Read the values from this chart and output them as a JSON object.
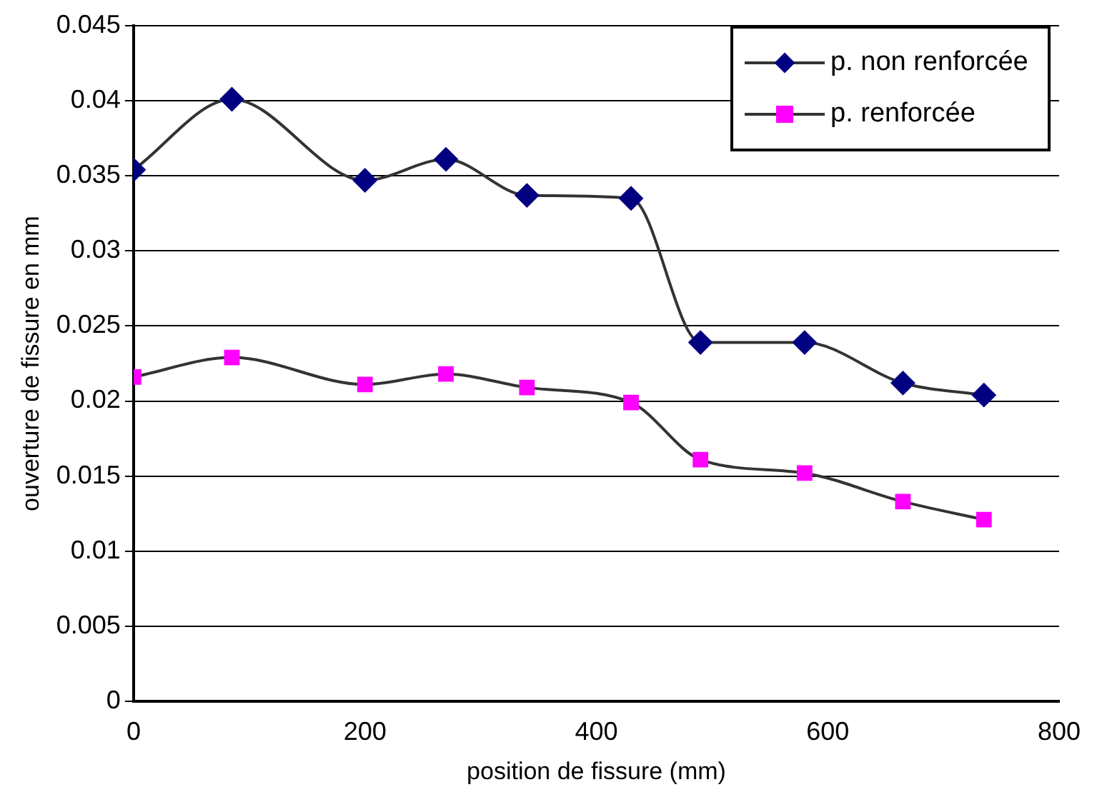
{
  "chart_data": {
    "type": "line",
    "xlabel": "position de fissure (mm)",
    "ylabel": "ouverture de fissure en mm",
    "xlim": [
      0,
      800
    ],
    "xticks": [
      0,
      200,
      400,
      600,
      800
    ],
    "ylim": [
      0,
      0.045
    ],
    "yticks": [
      0,
      0.005,
      0.01,
      0.015,
      0.02,
      0.025,
      0.03,
      0.035,
      0.04,
      0.045
    ],
    "grid": "y",
    "legend": "top right",
    "line_style": "solid",
    "series": [
      {
        "name": "p. non renforcée",
        "color": "#000080",
        "marker": "diamond",
        "x": [
          0,
          85,
          200,
          270,
          340,
          430,
          490,
          580,
          665,
          735
        ],
        "values": [
          0.0354,
          0.0401,
          0.0347,
          0.0361,
          0.0337,
          0.0335,
          0.0239,
          0.0239,
          0.0212,
          0.0204
        ]
      },
      {
        "name": "p. renforcée",
        "color": "#ff00ff",
        "marker": "square",
        "x": [
          0,
          85,
          200,
          270,
          340,
          430,
          490,
          580,
          665,
          735
        ],
        "values": [
          0.0216,
          0.0229,
          0.0211,
          0.0218,
          0.0209,
          0.0199,
          0.0161,
          0.0152,
          0.0133,
          0.0121
        ]
      }
    ]
  }
}
